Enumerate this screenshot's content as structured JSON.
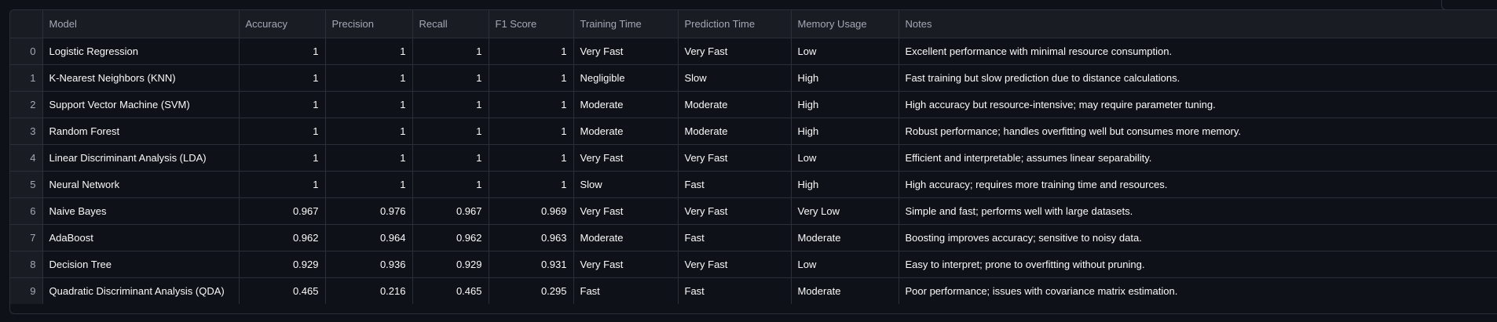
{
  "columns": [
    "",
    "Model",
    "Accuracy",
    "Precision",
    "Recall",
    "F1 Score",
    "Training Time",
    "Prediction Time",
    "Memory Usage",
    "Notes"
  ],
  "rows": [
    {
      "idx": "0",
      "model": "Logistic Regression",
      "accuracy": "1",
      "precision": "1",
      "recall": "1",
      "f1": "1",
      "training": "Very Fast",
      "prediction": "Very Fast",
      "memory": "Low",
      "notes": "Excellent performance with minimal resource consumption."
    },
    {
      "idx": "1",
      "model": "K-Nearest Neighbors (KNN)",
      "accuracy": "1",
      "precision": "1",
      "recall": "1",
      "f1": "1",
      "training": "Negligible",
      "prediction": "Slow",
      "memory": "High",
      "notes": "Fast training but slow prediction due to distance calculations."
    },
    {
      "idx": "2",
      "model": "Support Vector Machine (SVM)",
      "accuracy": "1",
      "precision": "1",
      "recall": "1",
      "f1": "1",
      "training": "Moderate",
      "prediction": "Moderate",
      "memory": "High",
      "notes": "High accuracy but resource-intensive; may require parameter tuning."
    },
    {
      "idx": "3",
      "model": "Random Forest",
      "accuracy": "1",
      "precision": "1",
      "recall": "1",
      "f1": "1",
      "training": "Moderate",
      "prediction": "Moderate",
      "memory": "High",
      "notes": "Robust performance; handles overfitting well but consumes more memory."
    },
    {
      "idx": "4",
      "model": "Linear Discriminant Analysis (LDA)",
      "accuracy": "1",
      "precision": "1",
      "recall": "1",
      "f1": "1",
      "training": "Very Fast",
      "prediction": "Very Fast",
      "memory": "Low",
      "notes": "Efficient and interpretable; assumes linear separability."
    },
    {
      "idx": "5",
      "model": "Neural Network",
      "accuracy": "1",
      "precision": "1",
      "recall": "1",
      "f1": "1",
      "training": "Slow",
      "prediction": "Fast",
      "memory": "High",
      "notes": "High accuracy; requires more training time and resources."
    },
    {
      "idx": "6",
      "model": "Naive Bayes",
      "accuracy": "0.967",
      "precision": "0.976",
      "recall": "0.967",
      "f1": "0.969",
      "training": "Very Fast",
      "prediction": "Very Fast",
      "memory": "Very Low",
      "notes": "Simple and fast; performs well with large datasets."
    },
    {
      "idx": "7",
      "model": "AdaBoost",
      "accuracy": "0.962",
      "precision": "0.964",
      "recall": "0.962",
      "f1": "0.963",
      "training": "Moderate",
      "prediction": "Fast",
      "memory": "Moderate",
      "notes": "Boosting improves accuracy; sensitive to noisy data."
    },
    {
      "idx": "8",
      "model": "Decision Tree",
      "accuracy": "0.929",
      "precision": "0.936",
      "recall": "0.929",
      "f1": "0.931",
      "training": "Very Fast",
      "prediction": "Very Fast",
      "memory": "Low",
      "notes": "Easy to interpret; prone to overfitting without pruning."
    },
    {
      "idx": "9",
      "model": "Quadratic Discriminant Analysis (QDA)",
      "accuracy": "0.465",
      "precision": "0.216",
      "recall": "0.465",
      "f1": "0.295",
      "training": "Fast",
      "prediction": "Fast",
      "memory": "Moderate",
      "notes": "Poor performance; issues with covariance matrix estimation."
    }
  ]
}
